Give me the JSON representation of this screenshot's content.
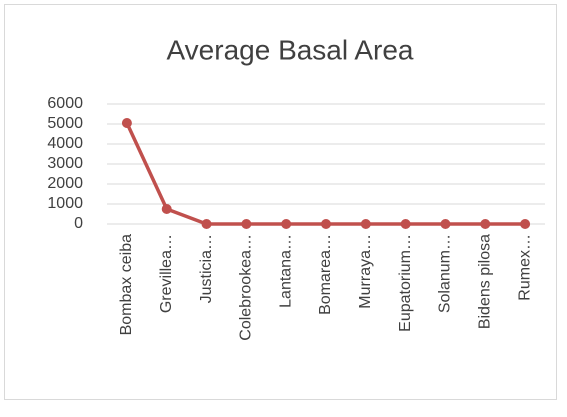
{
  "chart_data": {
    "type": "line",
    "title": "Average Basal Area",
    "categories": [
      "Bombax ceiba",
      "Grevillea…",
      "Justicia…",
      "Colebrookea…",
      "Lantana…",
      "Bomarea…",
      "Murraya…",
      "Eupatorium…",
      "Solanum…",
      "Bidens pilosa",
      "Rumex…"
    ],
    "series": [
      {
        "name": "Average Basal Area",
        "color": "#c0504d",
        "values": [
          5050,
          750,
          0,
          0,
          0,
          0,
          0,
          0,
          0,
          0,
          0
        ]
      }
    ],
    "ylim": [
      0,
      6000
    ],
    "yticks": [
      0,
      1000,
      2000,
      3000,
      4000,
      5000,
      6000
    ],
    "grid": true
  }
}
